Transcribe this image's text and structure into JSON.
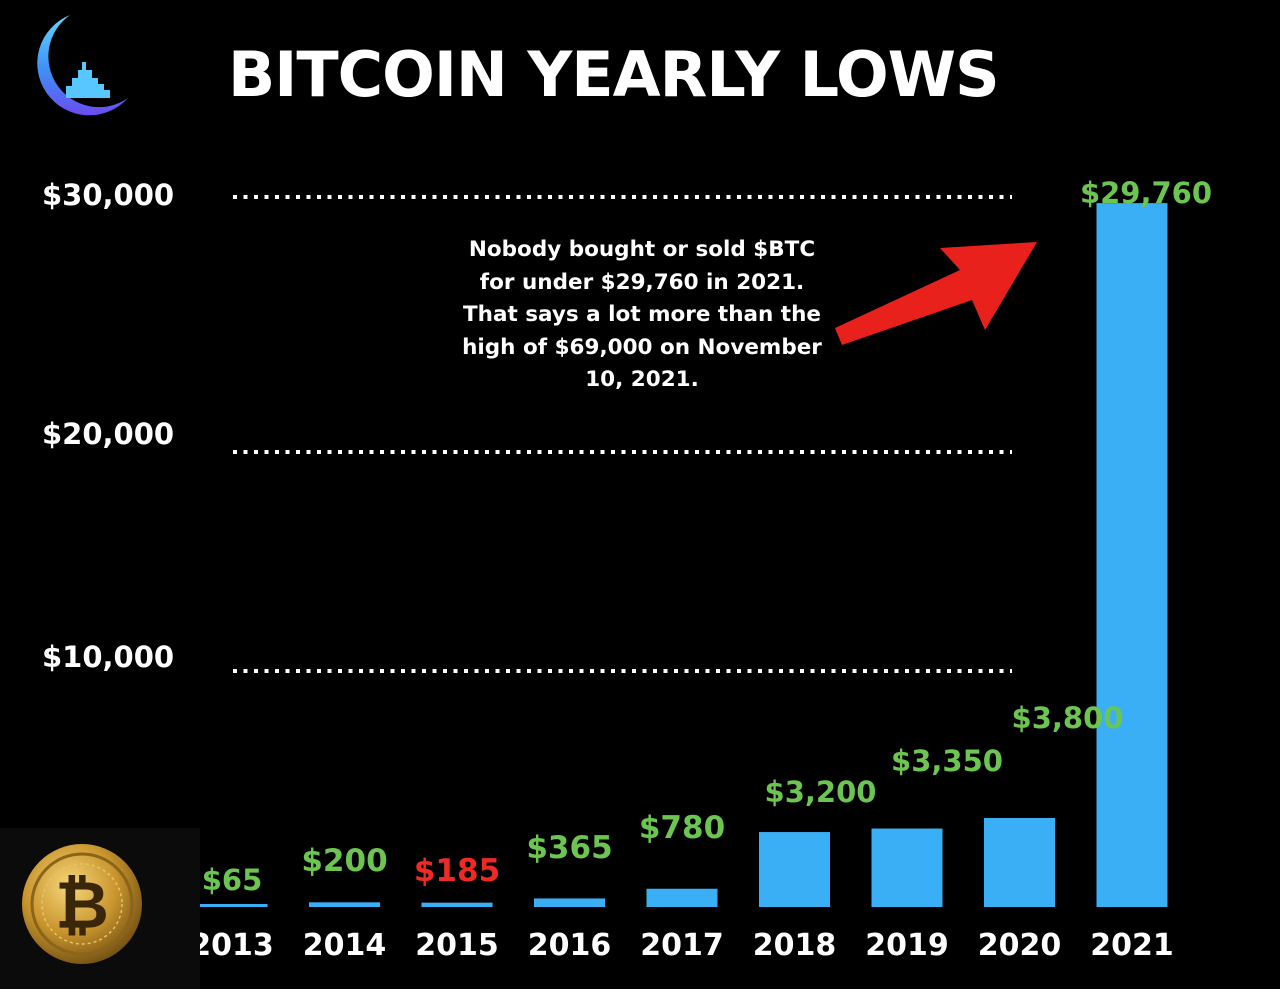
{
  "colors": {
    "background": "#000000",
    "bar": "#3aaff5",
    "label_up": "#6cc551",
    "label_down": "#ee2a24",
    "text": "#ffffff",
    "arrow": "#e8211c"
  },
  "icons": {
    "logo": "moon-city-logo-icon",
    "coin": "bitcoin-coin-icon"
  },
  "chart_data": {
    "type": "bar",
    "title": "BITCOIN YEARLY LOWS",
    "categories": [
      "2013",
      "2014",
      "2015",
      "2016",
      "2017",
      "2018",
      "2019",
      "2020",
      "2021"
    ],
    "values": [
      65,
      200,
      185,
      365,
      780,
      3200,
      3350,
      3800,
      29760
    ],
    "data_labels": [
      "$65",
      "$200",
      "$185",
      "$365",
      "$780",
      "$3,200",
      "$3,350",
      "$3,800",
      "$29,760"
    ],
    "label_colors": [
      "#6cc551",
      "#6cc551",
      "#ee2a24",
      "#6cc551",
      "#6cc551",
      "#6cc551",
      "#6cc551",
      "#6cc551",
      "#6cc551"
    ],
    "y_ticks": [
      10000,
      20000,
      30000
    ],
    "y_tick_labels": [
      "$10,000",
      "$20,000",
      "$30,000"
    ],
    "ylim": [
      0,
      30000
    ],
    "grid": "dotted",
    "annotation": "Nobody bought or sold $BTC for under $29,760 in 2021. That says a lot more than the high of $69,000 on November 10, 2021."
  }
}
